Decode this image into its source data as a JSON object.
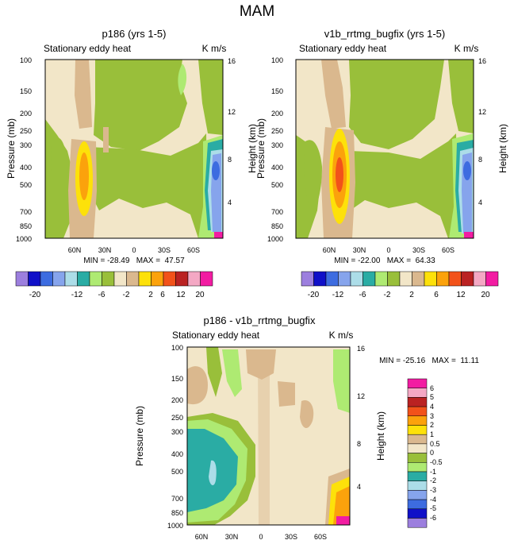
{
  "figure": {
    "title": "MAM"
  },
  "colors": {
    "c1": "#9c7fde",
    "c2": "#1010c8",
    "c3": "#3d6ce0",
    "c4": "#86a4ec",
    "c5": "#acdde8",
    "c6": "#2aaca4",
    "c7": "#aeea72",
    "c8": "#99bf3a",
    "c9": "#f2e6c8",
    "c10": "#dab88e",
    "c11": "#fde10a",
    "c12": "#fba20c",
    "c13": "#f2521a",
    "c14": "#ba2222",
    "c15": "#f4a8c4",
    "c16": "#f21ca2",
    "frame": "#000000"
  },
  "chart_data": [
    {
      "type": "contour",
      "title": "p186 (yrs 1-5)",
      "variable_label": "Stationary eddy heat",
      "units": "K m/s",
      "ylabel": "Pressure (mb)",
      "y2label": "Height (km)",
      "x_ticks": [
        "60N",
        "30N",
        "0",
        "30S",
        "60S"
      ],
      "y_ticks": [
        "100",
        "150",
        "200",
        "250",
        "300",
        "400",
        "500",
        "700",
        "850",
        "1000"
      ],
      "y2_ticks": [
        "16",
        "12",
        "8",
        "4"
      ],
      "stats": "MIN = -28.49   MAX =  47.57",
      "min": -28.49,
      "max": 47.57,
      "colorbar_labels": [
        "-20",
        "-12",
        "-6",
        "-2",
        "2",
        "6",
        "12",
        "20"
      ]
    },
    {
      "type": "contour",
      "title": "v1b_rrtmg_bugfix (yrs 1-5)",
      "variable_label": "Stationary eddy heat",
      "units": "K m/s",
      "ylabel": "Pressure (mb)",
      "y2label": "Height (km)",
      "x_ticks": [
        "60N",
        "30N",
        "0",
        "30S",
        "60S"
      ],
      "y_ticks": [
        "100",
        "150",
        "200",
        "250",
        "300",
        "400",
        "500",
        "700",
        "850",
        "1000"
      ],
      "y2_ticks": [
        "16",
        "12",
        "8",
        "4"
      ],
      "stats": "MIN = -22.00   MAX =  64.33",
      "min": -22.0,
      "max": 64.33,
      "colorbar_labels": [
        "-20",
        "-12",
        "-6",
        "-2",
        "2",
        "6",
        "12",
        "20"
      ]
    },
    {
      "type": "contour",
      "title": "p186 - v1b_rrtmg_bugfix",
      "variable_label": "Stationary eddy heat",
      "units": "K m/s",
      "ylabel": "Pressure (mb)",
      "y2label": "Height (km)",
      "x_ticks": [
        "60N",
        "30N",
        "0",
        "30S",
        "60S"
      ],
      "y_ticks": [
        "100",
        "150",
        "200",
        "250",
        "300",
        "400",
        "500",
        "700",
        "850",
        "1000"
      ],
      "y2_ticks": [
        "16",
        "12",
        "8",
        "4"
      ],
      "stats": "MIN = -25.16   MAX =  11.11",
      "min": -25.16,
      "max": 11.11,
      "colorbar_labels": [
        "6",
        "5",
        "4",
        "3",
        "2",
        "1",
        "0.5",
        "0",
        "-0.5",
        "-1",
        "-2",
        "-3",
        "-4",
        "-5",
        "-6"
      ]
    }
  ]
}
